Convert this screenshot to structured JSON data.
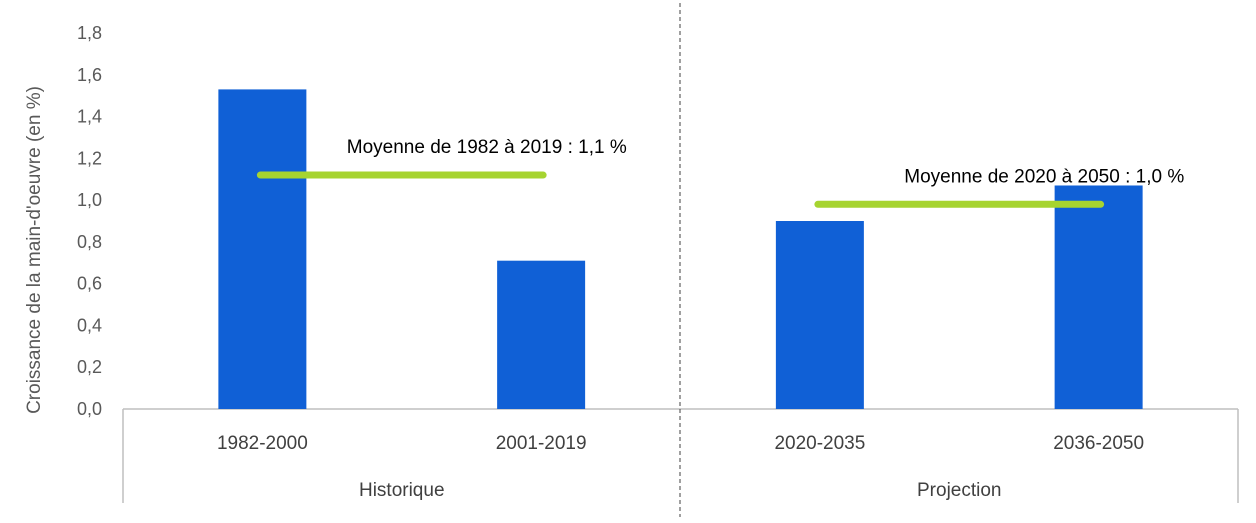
{
  "chart_data": {
    "type": "bar",
    "ylabel": "Croissance de la main-d'oeuvre (en %)",
    "ylim": [
      0,
      1.8
    ],
    "yticks": [
      "0,0",
      "0,2",
      "0,4",
      "0,6",
      "0,8",
      "1,0",
      "1,2",
      "1,4",
      "1,6",
      "1,8"
    ],
    "categories": [
      "1982-2000",
      "2001-2019",
      "2020-2035",
      "2036-2050"
    ],
    "values": [
      1.53,
      0.71,
      0.9,
      1.07
    ],
    "groups": [
      {
        "label": "Historique",
        "categories": [
          0,
          1
        ]
      },
      {
        "label": "Projection",
        "categories": [
          2,
          3
        ]
      }
    ],
    "averages": [
      {
        "label": "Moyenne de 1982 à 2019 : 1,1 %",
        "value": 1.12,
        "from": 0,
        "to": 1
      },
      {
        "label": "Moyenne de 2020 à 2050 : 1,0 %",
        "value": 0.98,
        "from": 2,
        "to": 3
      }
    ],
    "grid": false,
    "colors": {
      "bar": "#1060d6",
      "average": "#a6d430",
      "axis": "#bfbfbf",
      "separator": "#404040"
    }
  }
}
